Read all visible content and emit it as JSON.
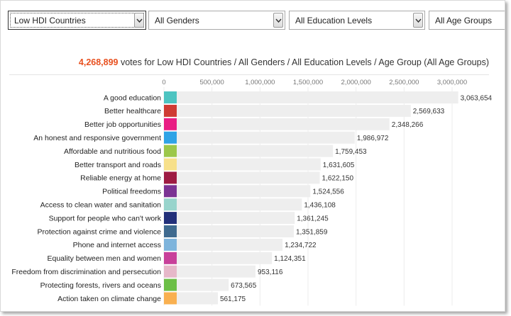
{
  "filters": {
    "region": "Low HDI Countries",
    "gender": "All Genders",
    "education": "All Education Levels",
    "age": "All Age Groups"
  },
  "summary": {
    "count": "4,268,899",
    "text": "votes for Low HDI Countries / All Genders / All Education Levels / Age Group (All Age Groups)"
  },
  "chart_data": {
    "type": "bar",
    "orientation": "horizontal",
    "xlim": [
      0,
      3000000
    ],
    "xticks": [
      0,
      500000,
      1000000,
      1500000,
      2000000,
      2500000,
      3000000
    ],
    "xtick_labels": [
      "0",
      "500,000",
      "1,000,000",
      "1,500,000",
      "2,000,000",
      "2,500,000",
      "3,000,000"
    ],
    "categories": [
      "A good education",
      "Better healthcare",
      "Better job opportunities",
      "An honest and responsive government",
      "Affordable and nutritious food",
      "Better transport and roads",
      "Reliable energy at home",
      "Political freedoms",
      "Access to clean water and sanitation",
      "Support for people who can't work",
      "Protection against crime and violence",
      "Phone and internet access",
      "Equality between men and women",
      "Freedom from discrimination and persecution",
      "Protecting forests, rivers and oceans",
      "Action taken on climate change"
    ],
    "values": [
      3063654,
      2569633,
      2348266,
      1986972,
      1759453,
      1631605,
      1622150,
      1524556,
      1436108,
      1361245,
      1351859,
      1234722,
      1124351,
      953116,
      673565,
      561175
    ],
    "value_labels": [
      "3,063,654",
      "2,569,633",
      "2,348,266",
      "1,986,972",
      "1,759,453",
      "1,631,605",
      "1,622,150",
      "1,524,556",
      "1,436,108",
      "1,361,245",
      "1,351,859",
      "1,234,722",
      "1,124,351",
      "953,116",
      "673,565",
      "561,175"
    ],
    "colors": [
      "#4dc4c1",
      "#cf3b33",
      "#e91e84",
      "#2fa3e6",
      "#9cc74a",
      "#f7e08a",
      "#9e1b42",
      "#7b3393",
      "#98d4cc",
      "#22307a",
      "#3e6a8f",
      "#7eb4dc",
      "#c8409a",
      "#e6b8c9",
      "#6cbf46",
      "#f9b050"
    ],
    "bar_color": "#eeeeee",
    "grid": true
  }
}
